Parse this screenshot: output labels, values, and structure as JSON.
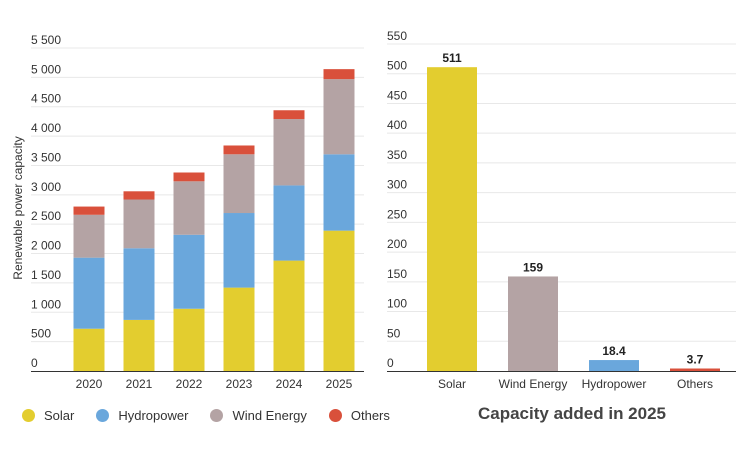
{
  "chart_data": [
    {
      "type": "bar",
      "stacked": true,
      "categories": [
        "2020",
        "2021",
        "2022",
        "2023",
        "2024",
        "2025"
      ],
      "series": [
        {
          "name": "Solar",
          "color": "#e3cd2f",
          "values": [
            720,
            870,
            1060,
            1420,
            1880,
            2390
          ]
        },
        {
          "name": "Hydropower",
          "color": "#6aa7dc",
          "values": [
            1210,
            1220,
            1260,
            1270,
            1280,
            1300
          ]
        },
        {
          "name": "Wind Energy",
          "color": "#b4a3a4",
          "values": [
            730,
            830,
            910,
            1000,
            1130,
            1280
          ]
        },
        {
          "name": "Others",
          "color": "#d9503b",
          "values": [
            140,
            140,
            150,
            150,
            150,
            170
          ]
        }
      ],
      "ylabel": "Renewable power capacity",
      "ylim": [
        0,
        5500
      ],
      "yticks": [
        "0",
        "500",
        "1 000",
        "1 500",
        "2 000",
        "2 500",
        "3 000",
        "3 500",
        "4 000",
        "4 500",
        "5 000",
        "5 500"
      ],
      "grid": true,
      "legend": "bottom"
    },
    {
      "type": "bar",
      "categories": [
        "Solar",
        "Wind Energy",
        "Hydropower",
        "Others"
      ],
      "values": [
        511,
        159,
        18.4,
        3.7
      ],
      "data_labels": [
        "511",
        "159",
        "18.4",
        "3.7"
      ],
      "colors": [
        "#e3cd2f",
        "#b4a3a4",
        "#6aa7dc",
        "#d9503b"
      ],
      "ylim": [
        0,
        550
      ],
      "yticks": [
        "0",
        "50",
        "100",
        "150",
        "200",
        "250",
        "300",
        "350",
        "400",
        "450",
        "500",
        "550"
      ],
      "grid": true,
      "caption": "Capacity added in 2025"
    }
  ]
}
